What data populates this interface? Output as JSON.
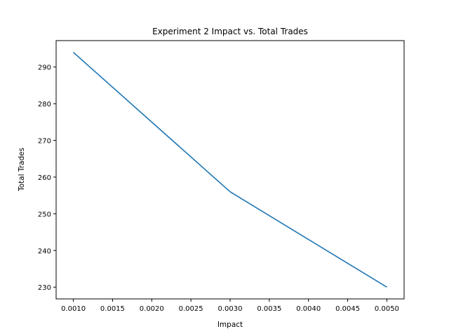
{
  "chart_data": {
    "type": "line",
    "title": "Experiment 2 Impact vs. Total Trades",
    "xlabel": "Impact",
    "ylabel": "Total Trades",
    "x": [
      0.001,
      0.003,
      0.005
    ],
    "series": [
      {
        "values": [
          294,
          256,
          230
        ],
        "color": "#1f77b4"
      }
    ],
    "xlim": [
      0.00078,
      0.00522
    ],
    "ylim": [
      226.8,
      297.2
    ],
    "xticks": [
      0.001,
      0.0015,
      0.002,
      0.0025,
      0.003,
      0.0035,
      0.004,
      0.0045,
      0.005
    ],
    "xtick_labels": [
      "0.0010",
      "0.0015",
      "0.0020",
      "0.0025",
      "0.0030",
      "0.0035",
      "0.0040",
      "0.0045",
      "0.0050"
    ],
    "yticks": [
      230,
      240,
      250,
      260,
      270,
      280,
      290
    ],
    "ytick_labels": [
      "230",
      "240",
      "250",
      "260",
      "270",
      "280",
      "290"
    ],
    "grid": false,
    "legend": false
  }
}
